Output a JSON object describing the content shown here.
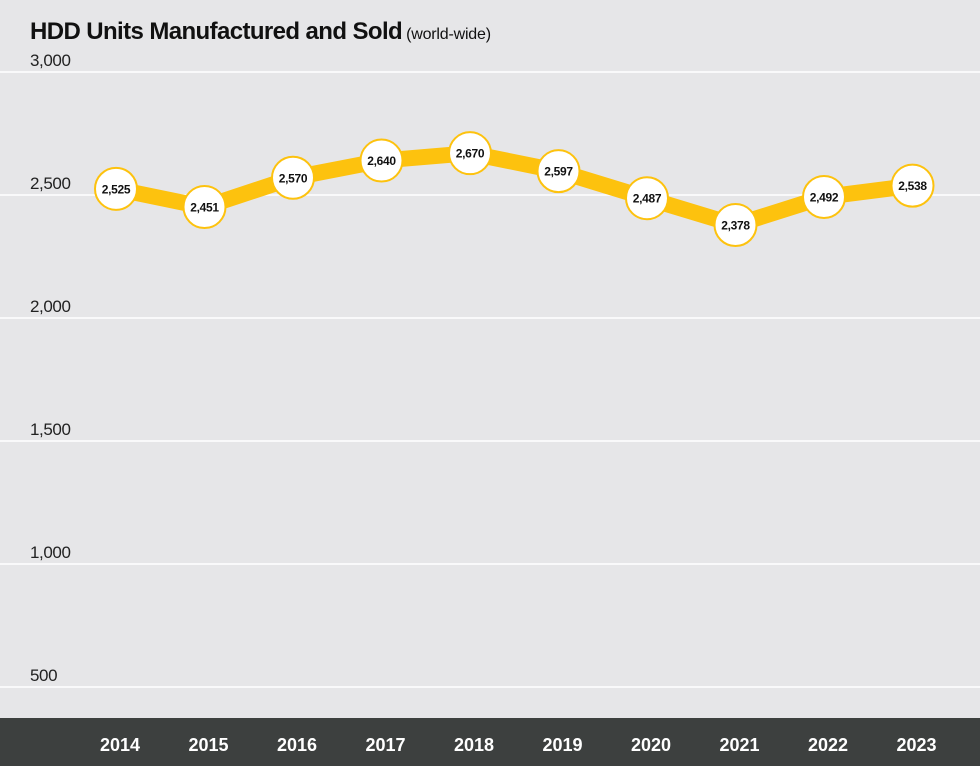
{
  "chart_data": {
    "type": "line",
    "title": "HDD Units Manufactured and Sold",
    "subtitle": "(world-wide)",
    "xlabel": "",
    "ylabel": "",
    "categories": [
      "2014",
      "2015",
      "2016",
      "2017",
      "2018",
      "2019",
      "2020",
      "2021",
      "2022",
      "2023"
    ],
    "series": [
      {
        "values": [
          2525,
          2451,
          2570,
          2640,
          2670,
          2597,
          2487,
          2378,
          2492,
          2538
        ],
        "labels": [
          "2,525",
          "2,451",
          "2,570",
          "2,640",
          "2,670",
          "2,597",
          "2,487",
          "2,378",
          "2,492",
          "2,538"
        ]
      }
    ],
    "yticks": [
      500,
      1000,
      1500,
      2000,
      2500,
      3000
    ],
    "ytick_labels": [
      "500",
      "1,000",
      "1,500",
      "2,000",
      "2,500",
      "3,000"
    ],
    "ylim": [
      500,
      3000
    ],
    "grid": true,
    "colors": {
      "line": "#fdc20e",
      "marker_fill": "#ffffff",
      "background": "#e6e6e8",
      "axis_band": "#3d403f",
      "grid": "#ffffff"
    }
  }
}
